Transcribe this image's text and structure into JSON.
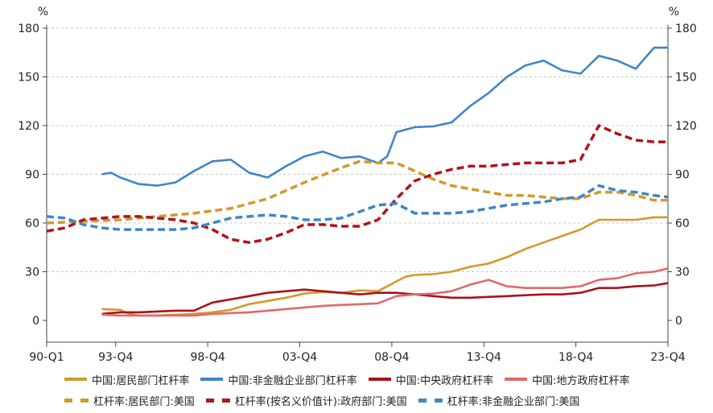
{
  "chart_data": {
    "type": "line",
    "y_unit_left": "%",
    "y_unit_right": "%",
    "ylim": [
      0,
      180
    ],
    "y_ticks": [
      0,
      30,
      60,
      90,
      120,
      150,
      180
    ],
    "x_range": [
      1990.0,
      2023.75
    ],
    "x_tick_labels": [
      "90-Q1",
      "93-Q4",
      "98-Q4",
      "03-Q4",
      "08-Q4",
      "13-Q4",
      "18-Q4",
      "23-Q4"
    ],
    "x_tick_values": [
      1990.0,
      1993.75,
      1998.75,
      2003.75,
      2008.75,
      2013.75,
      2018.75,
      2023.75
    ],
    "grid": "horizontal-dashed",
    "legend_position": "bottom",
    "series": [
      {
        "name": "中国:居民部门杠杆率",
        "style": "solid",
        "color": "#d19a2e",
        "points": [
          [
            1993,
            7
          ],
          [
            1994,
            6.5
          ],
          [
            1994.5,
            4
          ],
          [
            1995,
            3
          ],
          [
            1996,
            3
          ],
          [
            1997,
            3.5
          ],
          [
            1998,
            4
          ],
          [
            1999,
            5
          ],
          [
            2000,
            6.5
          ],
          [
            2001,
            10
          ],
          [
            2002,
            12
          ],
          [
            2003,
            14
          ],
          [
            2004,
            16.5
          ],
          [
            2005,
            17.5
          ],
          [
            2006,
            17
          ],
          [
            2007,
            18.5
          ],
          [
            2008,
            18
          ],
          [
            2009,
            24
          ],
          [
            2009.5,
            27
          ],
          [
            2010,
            28
          ],
          [
            2011,
            28.5
          ],
          [
            2012,
            30
          ],
          [
            2013,
            33
          ],
          [
            2014,
            35
          ],
          [
            2015,
            39
          ],
          [
            2016,
            44
          ],
          [
            2017,
            48
          ],
          [
            2018,
            52
          ],
          [
            2019,
            56
          ],
          [
            2020,
            62
          ],
          [
            2021,
            62
          ],
          [
            2022,
            62
          ],
          [
            2023,
            63.5
          ],
          [
            2023.75,
            63.5
          ]
        ]
      },
      {
        "name": "中国:非金融企业部门杠杆率",
        "style": "solid",
        "color": "#3f86c8",
        "points": [
          [
            1993,
            90
          ],
          [
            1993.5,
            91
          ],
          [
            1994,
            88
          ],
          [
            1995,
            84
          ],
          [
            1996,
            83
          ],
          [
            1997,
            85
          ],
          [
            1998,
            92
          ],
          [
            1999,
            98
          ],
          [
            2000,
            99
          ],
          [
            2001,
            91
          ],
          [
            2002,
            88
          ],
          [
            2003,
            95
          ],
          [
            2004,
            101
          ],
          [
            2005,
            104
          ],
          [
            2006,
            100
          ],
          [
            2007,
            101
          ],
          [
            2008,
            97
          ],
          [
            2008.5,
            101
          ],
          [
            2009,
            116
          ],
          [
            2010,
            119
          ],
          [
            2011,
            119.5
          ],
          [
            2012,
            122
          ],
          [
            2013,
            132
          ],
          [
            2014,
            140
          ],
          [
            2015,
            150
          ],
          [
            2016,
            157
          ],
          [
            2017,
            160
          ],
          [
            2018,
            154
          ],
          [
            2019,
            152
          ],
          [
            2020,
            163
          ],
          [
            2021,
            160
          ],
          [
            2022,
            155
          ],
          [
            2023,
            168
          ],
          [
            2023.75,
            168
          ]
        ]
      },
      {
        "name": "中国:中央政府杠杆率",
        "style": "solid",
        "color": "#a8131c",
        "points": [
          [
            1993,
            4
          ],
          [
            1994,
            5
          ],
          [
            1995,
            5
          ],
          [
            1996,
            5.5
          ],
          [
            1997,
            6
          ],
          [
            1998,
            6
          ],
          [
            1999,
            11
          ],
          [
            2000,
            13
          ],
          [
            2001,
            15
          ],
          [
            2002,
            17
          ],
          [
            2003,
            18
          ],
          [
            2004,
            19
          ],
          [
            2005,
            18
          ],
          [
            2006,
            17
          ],
          [
            2007,
            16
          ],
          [
            2008,
            17
          ],
          [
            2009,
            17
          ],
          [
            2010,
            16
          ],
          [
            2011,
            15
          ],
          [
            2012,
            14
          ],
          [
            2013,
            14
          ],
          [
            2014,
            14.5
          ],
          [
            2015,
            15
          ],
          [
            2016,
            15.5
          ],
          [
            2017,
            16
          ],
          [
            2018,
            16
          ],
          [
            2019,
            17
          ],
          [
            2020,
            20
          ],
          [
            2021,
            20
          ],
          [
            2022,
            21
          ],
          [
            2023,
            21.5
          ],
          [
            2023.75,
            23
          ]
        ]
      },
      {
        "name": "中国:地方政府杠杆率",
        "style": "solid",
        "color": "#e06a6a",
        "points": [
          [
            1993,
            3.5
          ],
          [
            1994,
            3
          ],
          [
            1995,
            3
          ],
          [
            1996,
            3
          ],
          [
            1997,
            3
          ],
          [
            1998,
            3
          ],
          [
            1999,
            4
          ],
          [
            2000,
            4.5
          ],
          [
            2001,
            5
          ],
          [
            2002,
            6
          ],
          [
            2003,
            7
          ],
          [
            2004,
            8
          ],
          [
            2005,
            9
          ],
          [
            2006,
            9.5
          ],
          [
            2007,
            10
          ],
          [
            2008,
            10.5
          ],
          [
            2009,
            15
          ],
          [
            2010,
            16
          ],
          [
            2011,
            16.5
          ],
          [
            2012,
            18
          ],
          [
            2013,
            22
          ],
          [
            2014,
            25
          ],
          [
            2015,
            21
          ],
          [
            2016,
            20
          ],
          [
            2017,
            20
          ],
          [
            2018,
            20
          ],
          [
            2019,
            21
          ],
          [
            2020,
            25
          ],
          [
            2021,
            26
          ],
          [
            2022,
            29
          ],
          [
            2023,
            30
          ],
          [
            2023.75,
            32
          ]
        ]
      },
      {
        "name": "杠杆率:居民部门:美国",
        "style": "dash",
        "color": "#d19a2e",
        "points": [
          [
            1990,
            60
          ],
          [
            1992,
            61
          ],
          [
            1994,
            62
          ],
          [
            1996,
            64
          ],
          [
            1998,
            66
          ],
          [
            2000,
            69
          ],
          [
            2002,
            75
          ],
          [
            2004,
            85
          ],
          [
            2006,
            94
          ],
          [
            2007,
            98
          ],
          [
            2008,
            97
          ],
          [
            2009,
            97
          ],
          [
            2010,
            92
          ],
          [
            2011,
            87
          ],
          [
            2012,
            83
          ],
          [
            2013,
            81
          ],
          [
            2014,
            79
          ],
          [
            2015,
            77
          ],
          [
            2016,
            77
          ],
          [
            2017,
            76
          ],
          [
            2018,
            75
          ],
          [
            2019,
            75
          ],
          [
            2020,
            79
          ],
          [
            2021,
            79
          ],
          [
            2022,
            77
          ],
          [
            2023,
            74
          ],
          [
            2023.75,
            74
          ]
        ]
      },
      {
        "name": "杠杆率(按名义价值计):政府部门:美国",
        "style": "dash",
        "color": "#b0141e",
        "points": [
          [
            1990,
            55
          ],
          [
            1991,
            57
          ],
          [
            1992,
            62
          ],
          [
            1993,
            63
          ],
          [
            1994,
            64
          ],
          [
            1995,
            64
          ],
          [
            1996,
            63
          ],
          [
            1997,
            62
          ],
          [
            1998,
            60
          ],
          [
            1999,
            56
          ],
          [
            2000,
            50
          ],
          [
            2001,
            48
          ],
          [
            2002,
            50
          ],
          [
            2003,
            54
          ],
          [
            2004,
            59
          ],
          [
            2005,
            59
          ],
          [
            2006,
            58
          ],
          [
            2007,
            58
          ],
          [
            2008,
            62
          ],
          [
            2009,
            75
          ],
          [
            2010,
            86
          ],
          [
            2011,
            90
          ],
          [
            2012,
            93
          ],
          [
            2013,
            95
          ],
          [
            2014,
            95
          ],
          [
            2015,
            96
          ],
          [
            2016,
            97
          ],
          [
            2017,
            97
          ],
          [
            2018,
            97
          ],
          [
            2019,
            99
          ],
          [
            2020,
            120
          ],
          [
            2021,
            115
          ],
          [
            2022,
            111
          ],
          [
            2023,
            110
          ],
          [
            2023.75,
            110
          ]
        ]
      },
      {
        "name": "杠杆率:非金融企业部门:美国",
        "style": "dash",
        "color": "#3f86c8",
        "points": [
          [
            1990,
            64
          ],
          [
            1991,
            63
          ],
          [
            1992,
            59
          ],
          [
            1993,
            57
          ],
          [
            1994,
            56
          ],
          [
            1995,
            56
          ],
          [
            1996,
            56
          ],
          [
            1997,
            56
          ],
          [
            1998,
            57
          ],
          [
            1999,
            60
          ],
          [
            2000,
            63
          ],
          [
            2001,
            64
          ],
          [
            2002,
            65
          ],
          [
            2003,
            64
          ],
          [
            2004,
            62
          ],
          [
            2005,
            62
          ],
          [
            2006,
            63
          ],
          [
            2007,
            67
          ],
          [
            2008,
            71
          ],
          [
            2009,
            72
          ],
          [
            2010,
            66
          ],
          [
            2011,
            66
          ],
          [
            2012,
            66
          ],
          [
            2013,
            67
          ],
          [
            2014,
            69
          ],
          [
            2015,
            71
          ],
          [
            2016,
            72
          ],
          [
            2017,
            73
          ],
          [
            2018,
            75
          ],
          [
            2019,
            76
          ],
          [
            2020,
            83
          ],
          [
            2021,
            80
          ],
          [
            2022,
            79
          ],
          [
            2023,
            77
          ],
          [
            2023.75,
            76
          ]
        ]
      }
    ]
  }
}
